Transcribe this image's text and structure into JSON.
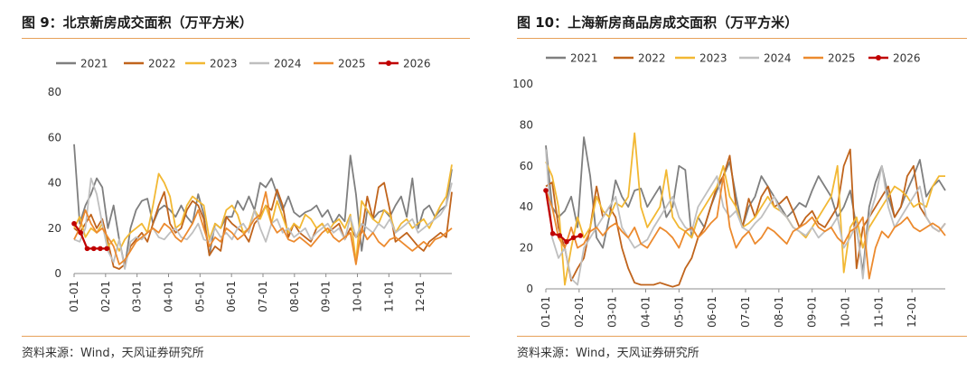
{
  "charts": [
    {
      "title": "图 9：北京新房成交面积（万平方米）",
      "source": "资料来源：Wind，天风证券研究所",
      "chart_data": {
        "type": "line",
        "title": "图 9：北京新房成交面积（万平方米）",
        "xlabel": "",
        "ylabel": "",
        "ylim": [
          0,
          80
        ],
        "yticks": [
          0,
          20,
          40,
          60,
          80
        ],
        "xticks": [
          "01-01",
          "02-01",
          "03-01",
          "04-01",
          "05-01",
          "06-01",
          "07-01",
          "08-01",
          "09-01",
          "10-01",
          "11-01",
          "12-01"
        ],
        "x_unit": "week_of_year",
        "x_max": 52,
        "legend_position": "top",
        "series": [
          {
            "name": "2021",
            "color": "#7f7f7f",
            "values": [
              57,
              22,
              30,
              35,
              42,
              38,
              20,
              30,
              15,
              3,
              20,
              28,
              32,
              33,
              22,
              28,
              30,
              28,
              25,
              30,
              25,
              22,
              35,
              26,
              8,
              22,
              20,
              25,
              25,
              32,
              28,
              34,
              28,
              40,
              38,
              42,
              35,
              28,
              34,
              27,
              25,
              27,
              28,
              30,
              25,
              28,
              22,
              26,
              23,
              52,
              35,
              10,
              28,
              24,
              27,
              28,
              25,
              30,
              34,
              25,
              42,
              20,
              28,
              30,
              25,
              28,
              30,
              46
            ]
          },
          {
            "name": "2022",
            "color": "#c0641c",
            "values": [
              20,
              18,
              22,
              26,
              20,
              24,
              14,
              3,
              2,
              4,
              12,
              15,
              18,
              14,
              22,
              30,
              36,
              22,
              18,
              20,
              28,
              32,
              30,
              24,
              8,
              12,
              10,
              25,
              22,
              20,
              18,
              14,
              22,
              25,
              30,
              28,
              37,
              30,
              16,
              22,
              18,
              16,
              14,
              20,
              22,
              18,
              20,
              22,
              15,
              20,
              16,
              18,
              34,
              24,
              38,
              40,
              28,
              14,
              16,
              18,
              15,
              12,
              10,
              14,
              16,
              18,
              16,
              36
            ]
          },
          {
            "name": "2023",
            "color": "#f2b833",
            "values": [
              20,
              25,
              16,
              20,
              18,
              22,
              12,
              15,
              10,
              15,
              18,
              20,
              22,
              18,
              30,
              44,
              40,
              34,
              20,
              22,
              30,
              34,
              32,
              30,
              15,
              22,
              20,
              28,
              30,
              26,
              18,
              20,
              28,
              24,
              30,
              22,
              32,
              25,
              18,
              22,
              20,
              26,
              24,
              20,
              22,
              18,
              22,
              24,
              20,
              26,
              5,
              32,
              28,
              24,
              22,
              28,
              26,
              18,
              22,
              24,
              20,
              22,
              24,
              20,
              25,
              30,
              34,
              48
            ]
          },
          {
            "name": "2024",
            "color": "#bfbfbf",
            "values": [
              15,
              14,
              20,
              42,
              35,
              22,
              10,
              5,
              15,
              2,
              14,
              16,
              15,
              18,
              20,
              16,
              15,
              18,
              20,
              16,
              15,
              18,
              22,
              15,
              14,
              20,
              16,
              18,
              15,
              20,
              22,
              18,
              28,
              20,
              14,
              22,
              24,
              18,
              20,
              16,
              18,
              20,
              15,
              18,
              20,
              22,
              18,
              20,
              15,
              25,
              16,
              22,
              20,
              18,
              22,
              20,
              24,
              18,
              20,
              22,
              24,
              18,
              20,
              22,
              24,
              26,
              30,
              40
            ]
          },
          {
            "name": "2025",
            "color": "#ec8a2e",
            "values": [
              15,
              20,
              28,
              22,
              18,
              20,
              16,
              12,
              4,
              6,
              10,
              14,
              16,
              18,
              20,
              18,
              22,
              20,
              16,
              14,
              18,
              22,
              28,
              20,
              12,
              16,
              14,
              20,
              18,
              15,
              17,
              20,
              24,
              26,
              36,
              22,
              18,
              20,
              15,
              14,
              16,
              14,
              12,
              15,
              18,
              20,
              16,
              14,
              16,
              18,
              4,
              20,
              15,
              18,
              14,
              12,
              15,
              16,
              14,
              12,
              10,
              12,
              14,
              12,
              15,
              16,
              18,
              20
            ]
          },
          {
            "name": "2026",
            "color": "#c00000",
            "values": [
              22,
              18,
              11,
              11,
              11,
              11
            ]
          }
        ]
      }
    },
    {
      "title": "图 10：上海新房商品房成交面积（万平方米）",
      "source": "资料来源：Wind，天风证券研究所",
      "chart_data": {
        "type": "line",
        "title": "图 10：上海新房商品房成交面积（万平方米）",
        "xlabel": "",
        "ylabel": "",
        "ylim": [
          0,
          100
        ],
        "yticks": [
          0,
          20,
          40,
          60,
          80,
          100
        ],
        "xticks": [
          "01-01",
          "02-01",
          "03-01",
          "04-01",
          "05-01",
          "06-01",
          "07-01",
          "08-01",
          "09-01",
          "10-01",
          "11-01",
          "12-01"
        ],
        "x_unit": "week_of_year",
        "x_max": 52,
        "legend_position": "top",
        "series": [
          {
            "name": "2021",
            "color": "#7f7f7f",
            "values": [
              70,
              40,
              35,
              38,
              45,
              30,
              74,
              55,
              25,
              20,
              35,
              53,
              45,
              40,
              48,
              49,
              40,
              45,
              50,
              35,
              40,
              60,
              58,
              25,
              35,
              30,
              40,
              48,
              55,
              62,
              45,
              30,
              40,
              45,
              55,
              50,
              45,
              40,
              35,
              38,
              42,
              40,
              48,
              55,
              50,
              45,
              35,
              40,
              48,
              30,
              8,
              40,
              52,
              60,
              45,
              35,
              40,
              48,
              55,
              63,
              45,
              50,
              53,
              48
            ]
          },
          {
            "name": "2022",
            "color": "#c0641c",
            "values": [
              50,
              52,
              30,
              20,
              4,
              10,
              15,
              30,
              50,
              35,
              40,
              35,
              20,
              10,
              3,
              2,
              2,
              2,
              3,
              2,
              1,
              2,
              10,
              15,
              25,
              30,
              40,
              50,
              55,
              65,
              40,
              30,
              44,
              35,
              45,
              50,
              40,
              42,
              45,
              38,
              30,
              35,
              38,
              32,
              30,
              35,
              40,
              60,
              68,
              10,
              30,
              35,
              40,
              45,
              50,
              35,
              40,
              55,
              60,
              40,
              35,
              30,
              28,
              32
            ]
          },
          {
            "name": "2023",
            "color": "#f2b833",
            "values": [
              62,
              55,
              40,
              2,
              20,
              35,
              25,
              30,
              45,
              38,
              35,
              42,
              40,
              45,
              76,
              40,
              30,
              35,
              40,
              58,
              35,
              30,
              28,
              25,
              35,
              40,
              45,
              50,
              60,
              45,
              40,
              30,
              32,
              35,
              40,
              45,
              40,
              38,
              35,
              30,
              28,
              25,
              30,
              35,
              40,
              45,
              60,
              8,
              30,
              35,
              20,
              30,
              35,
              40,
              45,
              50,
              48,
              45,
              40,
              42,
              40,
              50,
              55,
              55
            ]
          },
          {
            "name": "2024",
            "color": "#bfbfbf",
            "values": [
              68,
              25,
              15,
              20,
              5,
              2,
              20,
              25,
              30,
              35,
              40,
              45,
              30,
              25,
              20,
              22,
              24,
              30,
              35,
              40,
              45,
              35,
              30,
              28,
              40,
              45,
              50,
              55,
              40,
              35,
              38,
              30,
              28,
              32,
              35,
              40,
              45,
              38,
              35,
              30,
              28,
              26,
              30,
              25,
              28,
              30,
              35,
              20,
              25,
              32,
              5,
              35,
              45,
              60,
              40,
              30,
              35,
              40,
              45,
              50,
              35,
              30,
              28,
              32
            ]
          },
          {
            "name": "2025",
            "color": "#ec8a2e",
            "values": [
              48,
              40,
              25,
              20,
              30,
              20,
              22,
              28,
              30,
              26,
              30,
              32,
              28,
              25,
              30,
              22,
              20,
              25,
              30,
              28,
              25,
              20,
              28,
              30,
              25,
              28,
              32,
              35,
              55,
              30,
              20,
              25,
              28,
              22,
              25,
              30,
              28,
              25,
              22,
              28,
              30,
              32,
              35,
              30,
              28,
              30,
              25,
              22,
              28,
              30,
              35,
              5,
              20,
              28,
              25,
              30,
              32,
              35,
              30,
              28,
              30,
              32,
              30,
              26
            ]
          },
          {
            "name": "2026",
            "color": "#c00000",
            "values": [
              48,
              27,
              26,
              23,
              25,
              26
            ]
          }
        ]
      }
    }
  ]
}
